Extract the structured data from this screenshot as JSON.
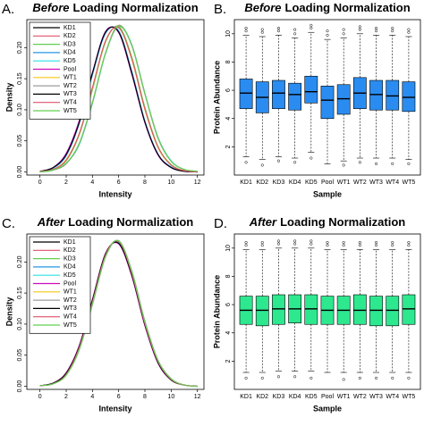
{
  "chart_data": [
    {
      "type": "density",
      "label": "A.",
      "title_em": "Before",
      "title": "Loading Normalization",
      "x_label": "Intensity",
      "y_label": "Density",
      "x": [
        0,
        1,
        2,
        3,
        4,
        5,
        6,
        7,
        8,
        9,
        10,
        11,
        12
      ],
      "xlim": [
        -1,
        12.5
      ],
      "xticks": [
        0,
        2,
        4,
        6,
        8,
        10,
        12
      ],
      "ylim": [
        -0.005,
        0.245
      ],
      "yticks": [
        {
          "value": 0,
          "label": "0.00"
        },
        {
          "value": 0.05,
          "label": "0.05"
        },
        {
          "value": 0.1,
          "label": "0.10"
        },
        {
          "value": 0.15,
          "label": "0.15"
        },
        {
          "value": 0.2,
          "label": "0.20"
        }
      ],
      "legend": "top-left",
      "series": [
        {
          "name": "KD1",
          "color": "#000000",
          "values": [
            0.001,
            0.004,
            0.019,
            0.061,
            0.134,
            0.21,
            0.233,
            0.183,
            0.102,
            0.04,
            0.011,
            0.002,
            0.0
          ]
        },
        {
          "name": "KD2",
          "color": "#df536b",
          "values": [
            0.0,
            0.003,
            0.013,
            0.046,
            0.112,
            0.192,
            0.236,
            0.203,
            0.125,
            0.054,
            0.017,
            0.004,
            0.001
          ]
        },
        {
          "name": "KD3",
          "color": "#61d04f",
          "values": [
            0.001,
            0.004,
            0.018,
            0.06,
            0.132,
            0.209,
            0.234,
            0.185,
            0.104,
            0.041,
            0.012,
            0.002,
            0.0
          ]
        },
        {
          "name": "KD4",
          "color": "#2297e6",
          "values": [
            0.001,
            0.006,
            0.026,
            0.078,
            0.156,
            0.223,
            0.227,
            0.162,
            0.082,
            0.029,
            0.008,
            0.001,
            0.0
          ]
        },
        {
          "name": "KD5",
          "color": "#28e2e5",
          "values": [
            0.0,
            0.003,
            0.014,
            0.044,
            0.11,
            0.19,
            0.235,
            0.205,
            0.127,
            0.056,
            0.018,
            0.004,
            0.001
          ]
        },
        {
          "name": "Pool",
          "color": "#cd0bbc",
          "values": [
            0.001,
            0.007,
            0.03,
            0.083,
            0.16,
            0.226,
            0.224,
            0.157,
            0.079,
            0.027,
            0.007,
            0.001,
            0.0
          ]
        },
        {
          "name": "WT1",
          "color": "#f5c710",
          "values": [
            0.001,
            0.004,
            0.02,
            0.062,
            0.135,
            0.211,
            0.232,
            0.181,
            0.1,
            0.039,
            0.011,
            0.002,
            0.0
          ]
        },
        {
          "name": "WT2",
          "color": "#9e9e9e",
          "values": [
            0.0,
            0.003,
            0.013,
            0.045,
            0.111,
            0.191,
            0.234,
            0.204,
            0.126,
            0.055,
            0.017,
            0.004,
            0.001
          ]
        },
        {
          "name": "WT3",
          "color": "#000000",
          "values": [
            0.001,
            0.007,
            0.028,
            0.08,
            0.159,
            0.225,
            0.225,
            0.159,
            0.08,
            0.028,
            0.007,
            0.001,
            0.0
          ]
        },
        {
          "name": "WT4",
          "color": "#df536b",
          "values": [
            0.001,
            0.004,
            0.019,
            0.062,
            0.136,
            0.211,
            0.232,
            0.182,
            0.101,
            0.04,
            0.011,
            0.002,
            0.0
          ]
        },
        {
          "name": "WT5",
          "color": "#61d04f",
          "values": [
            0.0,
            0.003,
            0.014,
            0.046,
            0.112,
            0.191,
            0.235,
            0.204,
            0.126,
            0.055,
            0.017,
            0.004,
            0.001
          ]
        }
      ]
    },
    {
      "type": "box",
      "label": "B.",
      "title_em": "Before",
      "title": "Loading Normalization",
      "x_label": "Sample",
      "y_label": "Protein Abundance",
      "color": "#2a8cf0",
      "categories": [
        "KD1",
        "KD2",
        "KD3",
        "KD4",
        "KD5",
        "Pool",
        "WT1",
        "WT2",
        "WT3",
        "WT4",
        "WT5"
      ],
      "ylim": [
        0,
        11
      ],
      "yticks": [
        2,
        4,
        6,
        8,
        10
      ],
      "boxes": [
        {
          "whislo": 1.3,
          "q1": 4.7,
          "med": 5.8,
          "q3": 6.8,
          "whishi": 9.9,
          "fliers": [
            10.2,
            10.4,
            0.9
          ]
        },
        {
          "whislo": 1.1,
          "q1": 4.4,
          "med": 5.5,
          "q3": 6.6,
          "whishi": 9.8,
          "fliers": [
            10.1,
            10.3,
            0.7
          ]
        },
        {
          "whislo": 1.3,
          "q1": 4.7,
          "med": 5.8,
          "q3": 6.7,
          "whishi": 9.9,
          "fliers": [
            10.2,
            10.4,
            1.0
          ]
        },
        {
          "whislo": 1.2,
          "q1": 4.6,
          "med": 5.7,
          "q3": 6.5,
          "whishi": 9.7,
          "fliers": [
            10.0,
            10.3,
            0.9
          ]
        },
        {
          "whislo": 1.6,
          "q1": 5.1,
          "med": 5.9,
          "q3": 7.0,
          "whishi": 10.1,
          "fliers": [
            10.4,
            10.6,
            1.2
          ]
        },
        {
          "whislo": 0.8,
          "q1": 4.0,
          "med": 5.3,
          "q3": 6.3,
          "whishi": 9.6,
          "fliers": [
            9.9,
            10.2
          ]
        },
        {
          "whislo": 1.0,
          "q1": 4.3,
          "med": 5.4,
          "q3": 6.4,
          "whishi": 9.7,
          "fliers": [
            10.0,
            10.3,
            0.7
          ]
        },
        {
          "whislo": 1.2,
          "q1": 4.7,
          "med": 5.8,
          "q3": 6.9,
          "whishi": 10.0,
          "fliers": [
            10.3,
            10.5,
            0.9
          ]
        },
        {
          "whislo": 1.2,
          "q1": 4.6,
          "med": 5.7,
          "q3": 6.7,
          "whishi": 9.9,
          "fliers": [
            10.2,
            10.4,
            0.8
          ]
        },
        {
          "whislo": 1.2,
          "q1": 4.6,
          "med": 5.6,
          "q3": 6.7,
          "whishi": 9.9,
          "fliers": [
            10.2,
            10.4,
            0.8
          ]
        },
        {
          "whislo": 1.1,
          "q1": 4.5,
          "med": 5.5,
          "q3": 6.6,
          "whishi": 9.8,
          "fliers": [
            10.1,
            10.3,
            0.8
          ]
        }
      ]
    },
    {
      "type": "density",
      "label": "C.",
      "title_em": "After",
      "title": "Loading Normalization",
      "x_label": "Intensity",
      "y_label": "Density",
      "x": [
        0,
        1,
        2,
        3,
        4,
        5,
        6,
        7,
        8,
        9,
        10,
        11,
        12
      ],
      "xlim": [
        -1,
        12.5
      ],
      "xticks": [
        0,
        2,
        4,
        6,
        8,
        10,
        12
      ],
      "ylim": [
        -0.005,
        0.245
      ],
      "yticks": [
        {
          "value": 0,
          "label": "0.00"
        },
        {
          "value": 0.05,
          "label": "0.05"
        },
        {
          "value": 0.1,
          "label": "0.10"
        },
        {
          "value": 0.15,
          "label": "0.15"
        },
        {
          "value": 0.2,
          "label": "0.20"
        }
      ],
      "legend": "top-left",
      "series": [
        {
          "name": "KD1",
          "color": "#000000",
          "values": [
            0.001,
            0.004,
            0.019,
            0.061,
            0.134,
            0.21,
            0.233,
            0.183,
            0.102,
            0.04,
            0.011,
            0.002,
            0.0
          ]
        },
        {
          "name": "KD2",
          "color": "#df536b",
          "values": [
            0.001,
            0.004,
            0.018,
            0.059,
            0.132,
            0.209,
            0.234,
            0.185,
            0.104,
            0.041,
            0.012,
            0.002,
            0.0
          ]
        },
        {
          "name": "KD3",
          "color": "#61d04f",
          "values": [
            0.001,
            0.004,
            0.019,
            0.062,
            0.135,
            0.211,
            0.232,
            0.182,
            0.101,
            0.04,
            0.011,
            0.002,
            0.0
          ]
        },
        {
          "name": "KD4",
          "color": "#2297e6",
          "values": [
            0.001,
            0.004,
            0.02,
            0.063,
            0.137,
            0.212,
            0.231,
            0.18,
            0.1,
            0.039,
            0.011,
            0.002,
            0.0
          ]
        },
        {
          "name": "KD5",
          "color": "#28e2e5",
          "values": [
            0.001,
            0.004,
            0.018,
            0.06,
            0.133,
            0.21,
            0.234,
            0.184,
            0.103,
            0.041,
            0.012,
            0.002,
            0.0
          ]
        },
        {
          "name": "Pool",
          "color": "#cd0bbc",
          "values": [
            0.001,
            0.005,
            0.022,
            0.066,
            0.14,
            0.214,
            0.229,
            0.177,
            0.097,
            0.037,
            0.01,
            0.002,
            0.0
          ]
        },
        {
          "name": "WT1",
          "color": "#f5c710",
          "values": [
            0.001,
            0.004,
            0.019,
            0.061,
            0.134,
            0.21,
            0.233,
            0.183,
            0.102,
            0.04,
            0.011,
            0.002,
            0.0
          ]
        },
        {
          "name": "WT2",
          "color": "#9e9e9e",
          "values": [
            0.001,
            0.004,
            0.018,
            0.059,
            0.131,
            0.208,
            0.234,
            0.186,
            0.105,
            0.042,
            0.012,
            0.002,
            0.0
          ]
        },
        {
          "name": "WT3",
          "color": "#000000",
          "values": [
            0.001,
            0.005,
            0.021,
            0.064,
            0.138,
            0.213,
            0.23,
            0.179,
            0.099,
            0.038,
            0.01,
            0.002,
            0.0
          ]
        },
        {
          "name": "WT4",
          "color": "#df536b",
          "values": [
            0.001,
            0.004,
            0.019,
            0.062,
            0.135,
            0.211,
            0.233,
            0.182,
            0.101,
            0.04,
            0.011,
            0.002,
            0.0
          ]
        },
        {
          "name": "WT5",
          "color": "#61d04f",
          "values": [
            0.001,
            0.004,
            0.018,
            0.06,
            0.133,
            0.209,
            0.234,
            0.184,
            0.103,
            0.041,
            0.012,
            0.002,
            0.0
          ]
        }
      ]
    },
    {
      "type": "box",
      "label": "D.",
      "title_em": "After",
      "title": "Loading Normalization",
      "x_label": "Sample",
      "y_label": "Protein Abundance",
      "color": "#2ee88f",
      "categories": [
        "KD1",
        "KD2",
        "KD3",
        "KD4",
        "KD5",
        "Pool",
        "WT1",
        "WT2",
        "WT3",
        "WT4",
        "WT5"
      ],
      "ylim": [
        0,
        11
      ],
      "yticks": [
        2,
        4,
        6,
        8,
        10
      ],
      "boxes": [
        {
          "whislo": 1.2,
          "q1": 4.6,
          "med": 5.6,
          "q3": 6.6,
          "whishi": 9.9,
          "fliers": [
            10.2,
            10.4,
            0.8
          ]
        },
        {
          "whislo": 1.2,
          "q1": 4.5,
          "med": 5.6,
          "q3": 6.6,
          "whishi": 9.9,
          "fliers": [
            10.2,
            10.4,
            0.8
          ]
        },
        {
          "whislo": 1.3,
          "q1": 4.6,
          "med": 5.7,
          "q3": 6.7,
          "whishi": 10.0,
          "fliers": [
            10.3,
            10.5,
            0.9
          ]
        },
        {
          "whislo": 1.3,
          "q1": 4.7,
          "med": 5.7,
          "q3": 6.7,
          "whishi": 10.0,
          "fliers": [
            10.3,
            10.5,
            0.9
          ]
        },
        {
          "whislo": 1.3,
          "q1": 4.6,
          "med": 5.7,
          "q3": 6.7,
          "whishi": 10.0,
          "fliers": [
            10.3,
            10.5,
            0.8
          ]
        },
        {
          "whislo": 1.2,
          "q1": 4.6,
          "med": 5.6,
          "q3": 6.6,
          "whishi": 9.9,
          "fliers": [
            10.2,
            10.4
          ]
        },
        {
          "whislo": 1.2,
          "q1": 4.6,
          "med": 5.6,
          "q3": 6.6,
          "whishi": 9.9,
          "fliers": [
            10.2,
            10.4,
            0.7
          ]
        },
        {
          "whislo": 1.2,
          "q1": 4.6,
          "med": 5.6,
          "q3": 6.7,
          "whishi": 9.9,
          "fliers": [
            10.2,
            10.4,
            0.8
          ]
        },
        {
          "whislo": 1.2,
          "q1": 4.5,
          "med": 5.6,
          "q3": 6.6,
          "whishi": 9.9,
          "fliers": [
            10.2,
            10.4,
            0.8
          ]
        },
        {
          "whislo": 1.2,
          "q1": 4.5,
          "med": 5.6,
          "q3": 6.6,
          "whishi": 9.9,
          "fliers": [
            10.2,
            10.4,
            0.8
          ]
        },
        {
          "whislo": 1.2,
          "q1": 4.6,
          "med": 5.7,
          "q3": 6.7,
          "whishi": 9.9,
          "fliers": [
            10.2,
            10.4,
            0.8
          ]
        }
      ]
    }
  ]
}
